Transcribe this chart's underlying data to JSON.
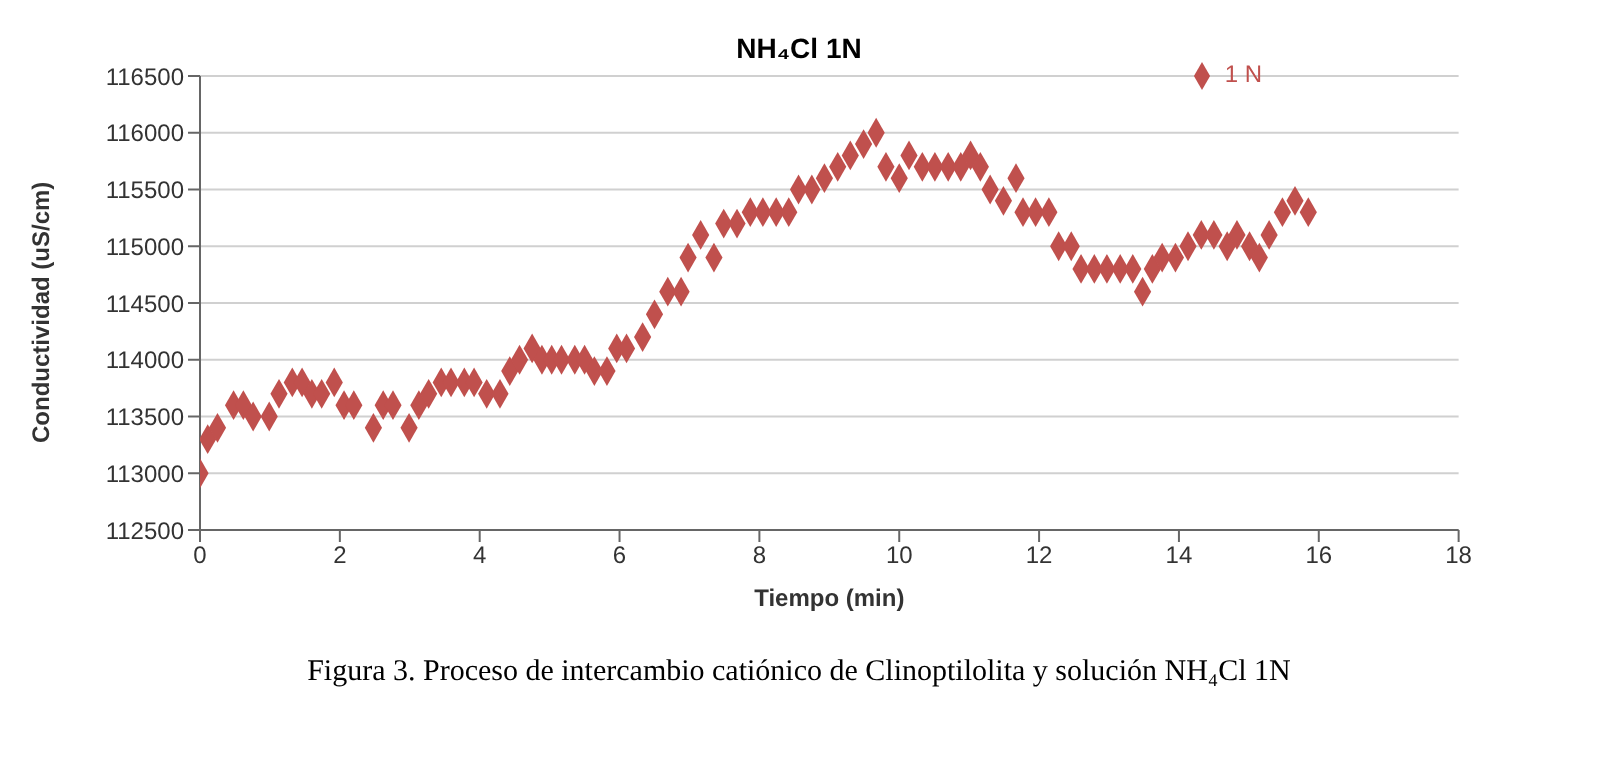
{
  "chart_data": {
    "type": "scatter",
    "title": "NH₄Cl 1N",
    "xlabel": "Tiempo (min)",
    "ylabel": "Conductividad (uS/cm)",
    "annotations": [
      "Figura 3.  Proceso de intercambio catiónico de Clinoptilolita y solución NH₄Cl 1N"
    ],
    "series": [
      {
        "name": "1 N",
        "color": "#c0504d",
        "x": [
          0,
          0.11,
          0.25,
          0.48,
          0.62,
          0.76,
          0.99,
          1.13,
          1.32,
          1.46,
          1.6,
          1.74,
          1.92,
          2.06,
          2.2,
          2.48,
          2.62,
          2.76,
          2.99,
          3.13,
          3.27,
          3.45,
          3.59,
          3.78,
          3.92,
          4.1,
          4.29,
          4.43,
          4.57,
          4.75,
          4.89,
          5.03,
          5.17,
          5.36,
          5.5,
          5.64,
          5.82,
          5.96,
          6.1,
          6.33,
          6.5,
          6.69,
          6.88,
          6.98,
          7.16,
          7.35,
          7.49,
          7.68,
          7.87,
          8.05,
          8.24,
          8.42,
          8.56,
          8.75,
          8.93,
          9.12,
          9.3,
          9.49,
          9.67,
          9.81,
          10.0,
          10.14,
          10.33,
          10.51,
          10.7,
          10.88,
          11.02,
          11.16,
          11.3,
          11.49,
          11.67,
          11.77,
          11.95,
          12.14,
          12.28,
          12.46,
          12.6,
          12.79,
          12.97,
          13.16,
          13.34,
          13.48,
          13.62,
          13.76,
          13.95,
          14.13,
          14.32,
          14.5,
          14.69,
          14.83,
          15.01,
          15.15,
          15.29,
          15.48,
          15.66,
          15.85
        ],
        "values": [
          113000,
          113300,
          113400,
          113600,
          113600,
          113500,
          113500,
          113700,
          113800,
          113800,
          113700,
          113700,
          113800,
          113600,
          113600,
          113400,
          113600,
          113600,
          113400,
          113600,
          113700,
          113800,
          113800,
          113800,
          113800,
          113700,
          113700,
          113900,
          114000,
          114100,
          114000,
          114000,
          114000,
          114000,
          114000,
          113900,
          113900,
          114100,
          114100,
          114200,
          114400,
          114600,
          114600,
          114900,
          115100,
          114900,
          115200,
          115200,
          115300,
          115300,
          115300,
          115300,
          115500,
          115500,
          115600,
          115700,
          115800,
          115900,
          116000,
          115700,
          115600,
          115800,
          115700,
          115700,
          115700,
          115700,
          115800,
          115700,
          115500,
          115400,
          115600,
          115300,
          115300,
          115300,
          115000,
          115000,
          114800,
          114800,
          114800,
          114800,
          114800,
          114600,
          114800,
          114900,
          114900,
          115000,
          115100,
          115100,
          115000,
          115100,
          115000,
          114900,
          115100,
          115300,
          115400,
          115300
        ]
      }
    ],
    "xlim": [
      0,
      18
    ],
    "xticks": [
      0,
      2,
      4,
      6,
      8,
      10,
      12,
      14,
      16,
      18
    ],
    "ylim": [
      112500,
      116500
    ],
    "yticks": [
      112500,
      113000,
      113500,
      114000,
      114500,
      115000,
      115500,
      116000,
      116500
    ],
    "grid": "y",
    "legend": "top right",
    "marker": "diamond"
  }
}
